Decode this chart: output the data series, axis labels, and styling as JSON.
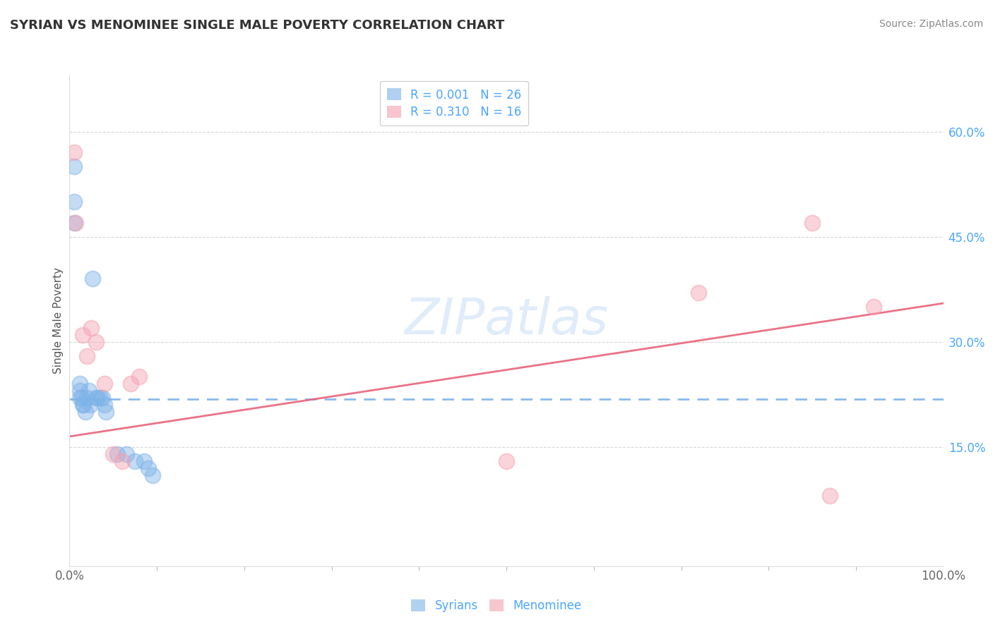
{
  "title": "SYRIAN VS MENOMINEE SINGLE MALE POVERTY CORRELATION CHART",
  "source": "Source: ZipAtlas.com",
  "ylabel": "Single Male Poverty",
  "xlim": [
    0.0,
    1.0
  ],
  "ylim": [
    -0.02,
    0.68
  ],
  "ytick_vals": [
    0.15,
    0.3,
    0.45,
    0.6
  ],
  "ytick_labels": [
    "15.0%",
    "30.0%",
    "45.0%",
    "60.0%"
  ],
  "watermark": "ZIPatlas",
  "legend_r1": "R = 0.001",
  "legend_n1": "N = 26",
  "legend_r2": "R = 0.310",
  "legend_n2": "N = 16",
  "syrians_color": "#7eb3e8",
  "menominee_color": "#f4a0b0",
  "syrians_line_color": "#7eb3e8",
  "menominee_line_color": "#e8637a",
  "grid_color": "#cccccc",
  "background_color": "#ffffff",
  "title_color": "#333333",
  "label_color": "#4da6ff",
  "syrians_x": [
    0.005,
    0.005,
    0.005,
    0.012,
    0.012,
    0.012,
    0.014,
    0.015,
    0.016,
    0.018,
    0.02,
    0.022,
    0.024,
    0.026,
    0.03,
    0.032,
    0.035,
    0.038,
    0.04,
    0.042,
    0.055,
    0.065,
    0.075,
    0.085,
    0.09,
    0.095
  ],
  "syrians_y": [
    0.55,
    0.5,
    0.47,
    0.24,
    0.23,
    0.22,
    0.22,
    0.21,
    0.21,
    0.2,
    0.22,
    0.23,
    0.21,
    0.39,
    0.22,
    0.22,
    0.22,
    0.22,
    0.21,
    0.2,
    0.14,
    0.14,
    0.13,
    0.13,
    0.12,
    0.11
  ],
  "menominee_x": [
    0.005,
    0.007,
    0.015,
    0.02,
    0.025,
    0.03,
    0.04,
    0.05,
    0.06,
    0.07,
    0.08,
    0.5,
    0.72,
    0.85,
    0.87,
    0.92
  ],
  "menominee_y": [
    0.57,
    0.47,
    0.31,
    0.28,
    0.32,
    0.3,
    0.24,
    0.14,
    0.13,
    0.24,
    0.25,
    0.13,
    0.37,
    0.47,
    0.08,
    0.35
  ],
  "syrian_trend_x0": 0.0,
  "syrian_trend_y0": 0.218,
  "syrian_trend_x1": 1.0,
  "syrian_trend_y1": 0.218,
  "menominee_trend_x0": 0.0,
  "menominee_trend_y0": 0.165,
  "menominee_trend_x1": 1.0,
  "menominee_trend_y1": 0.355
}
